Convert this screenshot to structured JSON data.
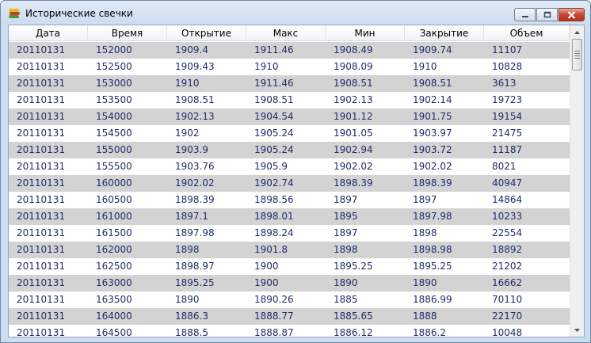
{
  "window": {
    "title": "Исторические свечки"
  },
  "colors": {
    "alt_row": "#d3d3d3",
    "cell_text": "#1f2d6b",
    "close_button": "#c8452f"
  },
  "table": {
    "columns": [
      "Дата",
      "Время",
      "Открытие",
      "Макс",
      "Мин",
      "Закрытие",
      "Объем"
    ],
    "rows": [
      [
        "20110131",
        "152000",
        "1909.4",
        "1911.46",
        "1908.49",
        "1909.74",
        "11107"
      ],
      [
        "20110131",
        "152500",
        "1909.43",
        "1910",
        "1908.09",
        "1910",
        "10828"
      ],
      [
        "20110131",
        "153000",
        "1910",
        "1911.46",
        "1908.51",
        "1908.51",
        "3613"
      ],
      [
        "20110131",
        "153500",
        "1908.51",
        "1908.51",
        "1902.13",
        "1902.14",
        "19723"
      ],
      [
        "20110131",
        "154000",
        "1902.13",
        "1904.54",
        "1901.12",
        "1901.75",
        "19154"
      ],
      [
        "20110131",
        "154500",
        "1902",
        "1905.24",
        "1901.05",
        "1903.97",
        "21475"
      ],
      [
        "20110131",
        "155000",
        "1903.9",
        "1905.24",
        "1902.94",
        "1903.72",
        "11187"
      ],
      [
        "20110131",
        "155500",
        "1903.76",
        "1905.9",
        "1902.02",
        "1902.02",
        "8021"
      ],
      [
        "20110131",
        "160000",
        "1902.02",
        "1902.74",
        "1898.39",
        "1898.39",
        "40947"
      ],
      [
        "20110131",
        "160500",
        "1898.39",
        "1898.56",
        "1897",
        "1897",
        "14864"
      ],
      [
        "20110131",
        "161000",
        "1897.1",
        "1898.01",
        "1895",
        "1897.98",
        "10233"
      ],
      [
        "20110131",
        "161500",
        "1897.98",
        "1898.24",
        "1897",
        "1898",
        "22554"
      ],
      [
        "20110131",
        "162000",
        "1898",
        "1901.8",
        "1898",
        "1898.98",
        "18892"
      ],
      [
        "20110131",
        "162500",
        "1898.97",
        "1900",
        "1895.25",
        "1895.25",
        "21202"
      ],
      [
        "20110131",
        "163000",
        "1895.25",
        "1900",
        "1890",
        "1890",
        "16662"
      ],
      [
        "20110131",
        "163500",
        "1890",
        "1890.26",
        "1885",
        "1886.99",
        "70110"
      ],
      [
        "20110131",
        "164000",
        "1886.3",
        "1888.77",
        "1885.65",
        "1888",
        "22170"
      ],
      [
        "20110131",
        "164500",
        "1888.5",
        "1888.87",
        "1886.12",
        "1886.2",
        "10048"
      ]
    ]
  }
}
